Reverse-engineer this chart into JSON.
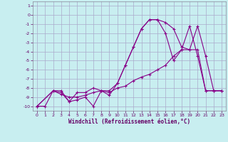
{
  "xlabel": "Windchill (Refroidissement éolien,°C)",
  "bg_color": "#c8eef0",
  "grid_color": "#aaaacc",
  "line_color": "#880088",
  "xlim": [
    -0.5,
    23.5
  ],
  "ylim": [
    -10.5,
    1.5
  ],
  "xticks": [
    0,
    1,
    2,
    3,
    4,
    5,
    6,
    7,
    8,
    9,
    10,
    11,
    12,
    13,
    14,
    15,
    16,
    17,
    18,
    19,
    20,
    21,
    22,
    23
  ],
  "yticks": [
    1,
    0,
    -1,
    -2,
    -3,
    -4,
    -5,
    -6,
    -7,
    -8,
    -9,
    -10
  ],
  "line1_x": [
    0,
    1,
    2,
    3,
    4,
    5,
    6,
    7,
    8,
    9,
    10,
    11,
    12,
    13,
    14,
    15,
    16,
    17,
    18,
    19,
    20,
    21,
    22,
    23
  ],
  "line1_y": [
    -10,
    -10,
    -8.3,
    -8.3,
    -9.5,
    -9.3,
    -9.0,
    -10,
    -8.3,
    -8.8,
    -7.5,
    -5.5,
    -3.5,
    -1.5,
    -0.5,
    -0.5,
    -0.8,
    -1.5,
    -3.5,
    -3.8,
    -1.2,
    -4.5,
    -8.3,
    -8.3
  ],
  "line2_x": [
    0,
    2,
    3,
    4,
    5,
    6,
    7,
    8,
    9,
    10,
    11,
    12,
    13,
    14,
    15,
    16,
    17,
    18,
    19,
    20,
    21,
    22,
    23
  ],
  "line2_y": [
    -10,
    -8.3,
    -8.5,
    -9.5,
    -8.5,
    -8.5,
    -8.0,
    -8.3,
    -8.3,
    -7.5,
    -5.5,
    -3.5,
    -1.5,
    -0.5,
    -0.5,
    -2.0,
    -5.0,
    -3.8,
    -1.2,
    -4.5,
    -8.3,
    -8.3,
    -8.3
  ],
  "line3_x": [
    0,
    2,
    3,
    4,
    5,
    6,
    7,
    8,
    9,
    10,
    11,
    12,
    13,
    14,
    15,
    16,
    17,
    18,
    19,
    20,
    21,
    22,
    23
  ],
  "line3_y": [
    -10.0,
    -8.3,
    -8.7,
    -9.0,
    -9.0,
    -8.8,
    -8.5,
    -8.3,
    -8.5,
    -8.0,
    -7.8,
    -7.2,
    -6.8,
    -6.5,
    -6.0,
    -5.5,
    -4.5,
    -3.8,
    -3.8,
    -3.8,
    -8.3,
    -8.3,
    -8.3
  ]
}
